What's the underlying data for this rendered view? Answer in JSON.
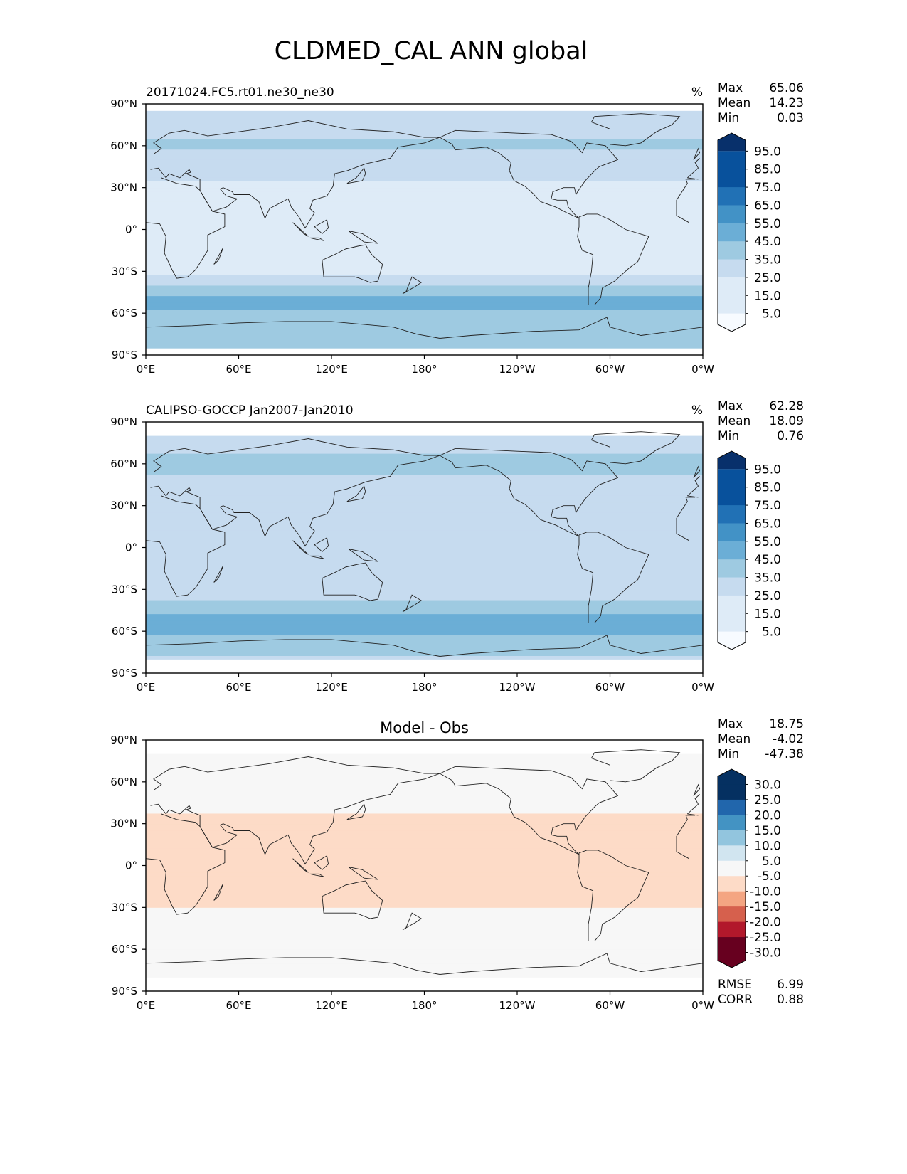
{
  "title": "CLDMED_CAL ANN global",
  "panels": [
    {
      "label": "20171024.FC5.rt01.ne30_ne30",
      "units": "%",
      "stats": [
        {
          "name": "Max",
          "value": "65.06"
        },
        {
          "name": "Mean",
          "value": "14.23"
        },
        {
          "name": "Min",
          "value": "0.03"
        }
      ],
      "colorbar_ticks": [
        "5.0",
        "15.0",
        "25.0",
        "35.0",
        "45.0",
        "55.0",
        "65.0",
        "75.0",
        "85.0",
        "95.0"
      ]
    },
    {
      "label": "CALIPSO-GOCCP Jan2007-Jan2010",
      "units": "%",
      "stats": [
        {
          "name": "Max",
          "value": "62.28"
        },
        {
          "name": "Mean",
          "value": "18.09"
        },
        {
          "name": "Min",
          "value": "0.76"
        }
      ],
      "colorbar_ticks": [
        "5.0",
        "15.0",
        "25.0",
        "35.0",
        "45.0",
        "55.0",
        "65.0",
        "75.0",
        "85.0",
        "95.0"
      ]
    },
    {
      "label": "Model - Obs",
      "units": "",
      "stats": [
        {
          "name": "Max",
          "value": "18.75"
        },
        {
          "name": "Mean",
          "value": "-4.02"
        },
        {
          "name": "Min",
          "value": "-47.38"
        }
      ],
      "extra_stats": [
        {
          "name": "RMSE",
          "value": "6.99"
        },
        {
          "name": "CORR",
          "value": "0.88"
        }
      ],
      "colorbar_ticks": [
        "-30.0",
        "-25.0",
        "-20.0",
        "-15.0",
        "-10.0",
        "-5.0",
        "5.0",
        "10.0",
        "15.0",
        "20.0",
        "25.0",
        "30.0"
      ]
    }
  ],
  "axes": {
    "x_ticks": [
      "0°E",
      "60°E",
      "120°E",
      "180°",
      "120°W",
      "60°W",
      "0°W"
    ],
    "y_ticks": [
      "90°N",
      "60°N",
      "30°N",
      "0°",
      "30°S",
      "60°S",
      "90°S"
    ]
  },
  "colors": {
    "seq": [
      "#f7fbff",
      "#deebf7",
      "#c6dbef",
      "#9ecae1",
      "#6baed6",
      "#4292c6",
      "#2171b5",
      "#08519c",
      "#08306b"
    ],
    "div_neg": [
      "#67001f",
      "#b2182b",
      "#d6604d",
      "#f4a582",
      "#fddbc7"
    ],
    "div_mid": "#f7f7f7",
    "div_pos": [
      "#d1e5f0",
      "#92c5de",
      "#4393c3",
      "#2166ac",
      "#053061"
    ]
  },
  "chart_data": [
    {
      "type": "heatmap",
      "title": "20171024.FC5.rt01.ne30_ne30",
      "units": "%",
      "xlim": [
        0,
        360
      ],
      "ylim": [
        -90,
        90
      ],
      "x_ticks": [
        0,
        60,
        120,
        180,
        240,
        300,
        360
      ],
      "y_ticks": [
        90,
        60,
        30,
        0,
        -30,
        -60,
        -90
      ],
      "levels": [
        5,
        15,
        25,
        35,
        45,
        55,
        65,
        75,
        85,
        95
      ],
      "stats": {
        "max": 65.06,
        "mean": 14.23,
        "min": 0.03
      },
      "zonal_mean_profile": {
        "lat": [
          -85,
          -70,
          -60,
          -50,
          -40,
          -30,
          -15,
          0,
          15,
          30,
          45,
          60,
          75,
          85
        ],
        "value": [
          30,
          25,
          34,
          38,
          24,
          12,
          10,
          12,
          9,
          12,
          20,
          26,
          22,
          18
        ]
      }
    },
    {
      "type": "heatmap",
      "title": "CALIPSO-GOCCP Jan2007-Jan2010",
      "units": "%",
      "xlim": [
        0,
        360
      ],
      "ylim": [
        -90,
        90
      ],
      "x_ticks": [
        0,
        60,
        120,
        180,
        240,
        300,
        360
      ],
      "y_ticks": [
        90,
        60,
        30,
        0,
        -30,
        -60,
        -90
      ],
      "levels": [
        5,
        15,
        25,
        35,
        45,
        55,
        65,
        75,
        85,
        95
      ],
      "stats": {
        "max": 62.28,
        "mean": 18.09,
        "min": 0.76
      },
      "zonal_mean_profile": {
        "lat": [
          -80,
          -70,
          -60,
          -50,
          -40,
          -30,
          -15,
          0,
          15,
          30,
          45,
          60,
          75,
          80
        ],
        "value": [
          22,
          32,
          36,
          38,
          28,
          18,
          16,
          18,
          15,
          18,
          24,
          26,
          24,
          22
        ]
      }
    },
    {
      "type": "heatmap",
      "title": "Model - Obs",
      "xlim": [
        0,
        360
      ],
      "ylim": [
        -90,
        90
      ],
      "x_ticks": [
        0,
        60,
        120,
        180,
        240,
        300,
        360
      ],
      "y_ticks": [
        90,
        60,
        30,
        0,
        -30,
        -60,
        -90
      ],
      "levels": [
        -30,
        -25,
        -20,
        -15,
        -10,
        -5,
        5,
        10,
        15,
        20,
        25,
        30
      ],
      "stats": {
        "max": 18.75,
        "mean": -4.02,
        "min": -47.38,
        "rmse": 6.99,
        "corr": 0.88
      },
      "zonal_mean_profile": {
        "lat": [
          -80,
          -70,
          -60,
          -50,
          -40,
          -30,
          -15,
          0,
          15,
          30,
          45,
          60,
          75,
          80
        ],
        "value": [
          -2,
          -4,
          2,
          0,
          -3,
          -5,
          -6,
          -6,
          -6,
          -6,
          -4,
          0,
          3,
          2
        ]
      }
    }
  ]
}
